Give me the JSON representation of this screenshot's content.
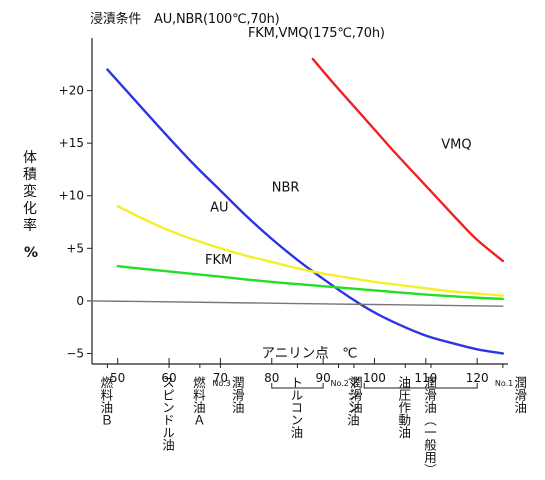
{
  "chart_data": {
    "type": "line",
    "title_line1": "浸漬条件　AU,NBR(100℃,70h)",
    "title_line2": "FKM,VMQ(175℃,70h)",
    "ylabel_chars": [
      "体",
      "積",
      "変",
      "化",
      "率"
    ],
    "yunit": "%",
    "xlabel": "アニリン点　℃",
    "xlim": [
      45,
      126
    ],
    "ylim": [
      -6,
      25
    ],
    "x_ticks": [
      50,
      60,
      70,
      80,
      90,
      100,
      110,
      120
    ],
    "y_ticks": [
      -5,
      0,
      5,
      10,
      15,
      20
    ],
    "y_tick_labels": [
      "−5",
      "0",
      "+5",
      "+10",
      "+15",
      "+20"
    ],
    "series": [
      {
        "name": "NBR",
        "color": "#2b35e6",
        "x": [
          48,
          55,
          60,
          65,
          70,
          75,
          80,
          85,
          90,
          95,
          100,
          105,
          110,
          115,
          120,
          125
        ],
        "y": [
          22,
          18.2,
          15.5,
          12.9,
          10.5,
          8.1,
          5.9,
          3.9,
          2.1,
          0.4,
          -1.1,
          -2.3,
          -3.3,
          -4.0,
          -4.6,
          -5.0
        ]
      },
      {
        "name": "AU",
        "color": "#f5ef2a",
        "x": [
          50,
          55,
          60,
          65,
          70,
          75,
          80,
          85,
          90,
          95,
          100,
          105,
          110,
          115,
          120,
          125
        ],
        "y": [
          9,
          7.8,
          6.7,
          5.8,
          5.0,
          4.3,
          3.7,
          3.1,
          2.6,
          2.2,
          1.8,
          1.5,
          1.2,
          0.9,
          0.7,
          0.5
        ]
      },
      {
        "name": "FKM",
        "color": "#22e022",
        "x": [
          50,
          60,
          70,
          80,
          90,
          100,
          110,
          120,
          125
        ],
        "y": [
          3.3,
          2.8,
          2.3,
          1.8,
          1.4,
          1.0,
          0.6,
          0.3,
          0.2
        ]
      },
      {
        "name": "VMQ",
        "color": "#ee2222",
        "x": [
          88,
          92,
          96,
          100,
          104,
          108,
          112,
          116,
          120,
          125
        ],
        "y": [
          23,
          20.7,
          18.5,
          16.3,
          14.1,
          12.0,
          9.9,
          7.8,
          5.8,
          3.8
        ]
      },
      {
        "name": "",
        "color": "#777777",
        "x": [
          45,
          125
        ],
        "y": [
          0,
          -0.5
        ]
      }
    ],
    "series_labels": [
      {
        "text": "NBR",
        "x": 80,
        "y": 10.4
      },
      {
        "text": "AU",
        "x": 68,
        "y": 8.5
      },
      {
        "text": "FKM",
        "x": 67,
        "y": 3.5
      },
      {
        "text": "VMQ",
        "x": 113,
        "y": 14.5
      }
    ],
    "oil_markers": [
      {
        "x": 48,
        "lines": [
          "燃料",
          "油",
          "Ｂ"
        ]
      },
      {
        "x": 60,
        "lines": [
          "スピンドル油"
        ]
      },
      {
        "x": 66,
        "lines": [
          "燃料油Ａ"
        ]
      },
      {
        "x": 70,
        "lines": [
          "潤滑油"
        ],
        "sub": "No.3"
      },
      {
        "x": 85,
        "lines": [
          "トルコン油"
        ]
      },
      {
        "x": 93,
        "lines": [
          "潤滑油"
        ],
        "sub": "No.2"
      },
      {
        "x": 96,
        "lines": [
          "マシン油"
        ]
      },
      {
        "x": 106,
        "lines": [
          "油圧作動油"
        ]
      },
      {
        "x": 111,
        "lines": [
          "潤滑油（一般用）"
        ]
      },
      {
        "x": 125,
        "lines": [
          "潤滑油"
        ],
        "sub": "No.1"
      }
    ]
  }
}
